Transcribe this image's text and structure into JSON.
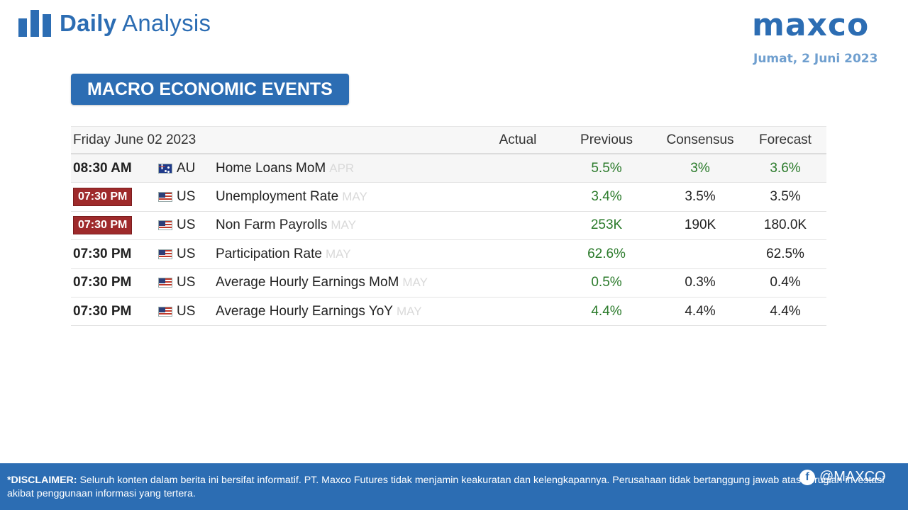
{
  "header": {
    "brand_bold": "Daily",
    "brand_light": "Analysis",
    "logo": "maxco",
    "date": "Jumat, 2 Juni 2023"
  },
  "section_title": "MACRO ECONOMIC EVENTS",
  "table": {
    "date_header": "Friday June 02 2023",
    "columns": {
      "actual": "Actual",
      "previous": "Previous",
      "consensus": "Consensus",
      "forecast": "Forecast"
    },
    "rows": [
      {
        "time": "08:30 AM",
        "badge": false,
        "flag": "australia-flag-icon",
        "country": "AU",
        "event": "Home Loans MoM",
        "period": "APR",
        "actual": "",
        "previous": "5.5%",
        "consensus": "3%",
        "forecast": "3.6%",
        "colored": true
      },
      {
        "time": "07:30 PM",
        "badge": true,
        "flag": "us-flag-icon",
        "country": "US",
        "event": "Unemployment Rate",
        "period": "MAY",
        "actual": "",
        "previous": "3.4%",
        "consensus": "3.5%",
        "forecast": "3.5%",
        "colored": false
      },
      {
        "time": "07:30 PM",
        "badge": true,
        "flag": "us-flag-icon",
        "country": "US",
        "event": "Non Farm Payrolls",
        "period": "MAY",
        "actual": "",
        "previous": "253K",
        "consensus": "190K",
        "forecast": "180.0K",
        "colored": false
      },
      {
        "time": "07:30 PM",
        "badge": false,
        "flag": "us-flag-icon",
        "country": "US",
        "event": "Participation Rate",
        "period": "MAY",
        "actual": "",
        "previous": "62.6%",
        "consensus": "",
        "forecast": "62.5%",
        "colored": false
      },
      {
        "time": "07:30 PM",
        "badge": false,
        "flag": "us-flag-icon",
        "country": "US",
        "event": "Average Hourly Earnings MoM",
        "period": "MAY",
        "actual": "",
        "previous": "0.5%",
        "consensus": "0.3%",
        "forecast": "0.4%",
        "colored": false
      },
      {
        "time": "07:30 PM",
        "badge": false,
        "flag": "us-flag-icon",
        "country": "US",
        "event": "Average Hourly Earnings YoY",
        "period": "MAY",
        "actual": "",
        "previous": "4.4%",
        "consensus": "4.4%",
        "forecast": "4.4%",
        "colored": false
      }
    ]
  },
  "footer": {
    "disclaimer_label": "*DISCLAIMER:",
    "disclaimer_text": " Seluruh konten dalam berita ini bersifat informatif. PT. Maxco Futures tidak menjamin keakuratan dan kelengkapannya. Perusahaan tidak bertanggung jawab atas kerugian investasi akibat penggunaan informasi yang tertera.",
    "social_handle": "@MAXCO",
    "social_icon": "facebook-icon"
  }
}
